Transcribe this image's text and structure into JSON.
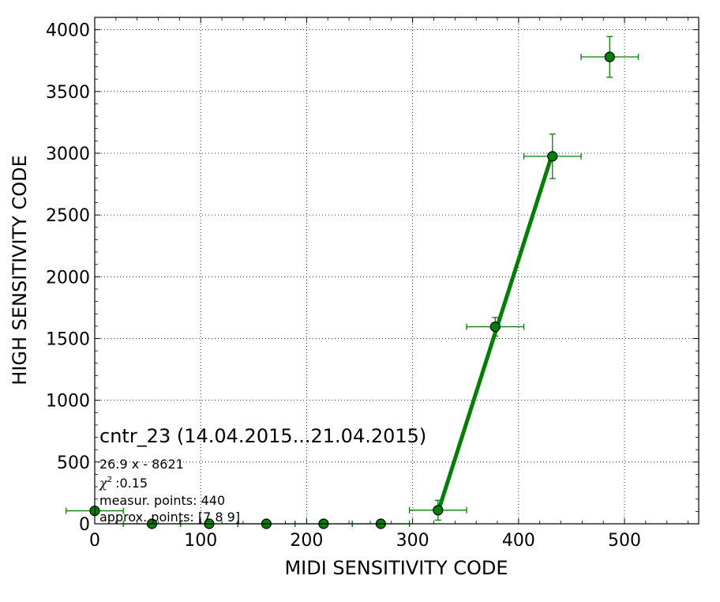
{
  "chart_data": {
    "type": "scatter",
    "title": "cntr_23 (14.04.2015...21.04.2015)",
    "xlabel": "MIDI SENSITIVITY CODE",
    "ylabel": "HIGH SENSITIVITY CODE",
    "xlim": [
      0,
      570
    ],
    "ylim": [
      0,
      4100
    ],
    "xticks": [
      0,
      100,
      200,
      300,
      400,
      500
    ],
    "yticks": [
      0,
      500,
      1000,
      1500,
      2000,
      2500,
      3000,
      3500,
      4000
    ],
    "grid": true,
    "marker_color": "#008000",
    "line_color": "#008000",
    "annotations": [
      {
        "text": "26.9 x - 8621",
        "bind": "fit"
      },
      {
        "text": "χ² :0.15",
        "bind": "chi"
      },
      {
        "text": "measur. points: 440",
        "bind": "measur"
      },
      {
        "text": "approx. points: [7 8 9]",
        "bind": "approx"
      }
    ],
    "fit_text": "26.9 x - 8621",
    "chi_label": ":0.15",
    "measur_text": "measur. points: 440",
    "approx_text": "approx. points: [7 8 9]",
    "points": [
      {
        "x": 0,
        "y": 105,
        "xerr": 27,
        "yerr": 0
      },
      {
        "x": 54,
        "y": 0,
        "xerr": 27,
        "yerr": 0
      },
      {
        "x": 108,
        "y": 0,
        "xerr": 27,
        "yerr": 0
      },
      {
        "x": 162,
        "y": 0,
        "xerr": 27,
        "yerr": 0
      },
      {
        "x": 216,
        "y": 0,
        "xerr": 27,
        "yerr": 0
      },
      {
        "x": 270,
        "y": 0,
        "xerr": 27,
        "yerr": 0
      },
      {
        "x": 324,
        "y": 110,
        "xerr": 27,
        "yerr": 80
      },
      {
        "x": 378,
        "y": 1595,
        "xerr": 27,
        "yerr": 75
      },
      {
        "x": 432,
        "y": 2975,
        "xerr": 27,
        "yerr": 180
      },
      {
        "x": 486,
        "y": 3780,
        "xerr": 27,
        "yerr": 165
      }
    ],
    "fit_line": {
      "x": [
        324,
        432
      ],
      "y": [
        95,
        3000
      ]
    }
  }
}
